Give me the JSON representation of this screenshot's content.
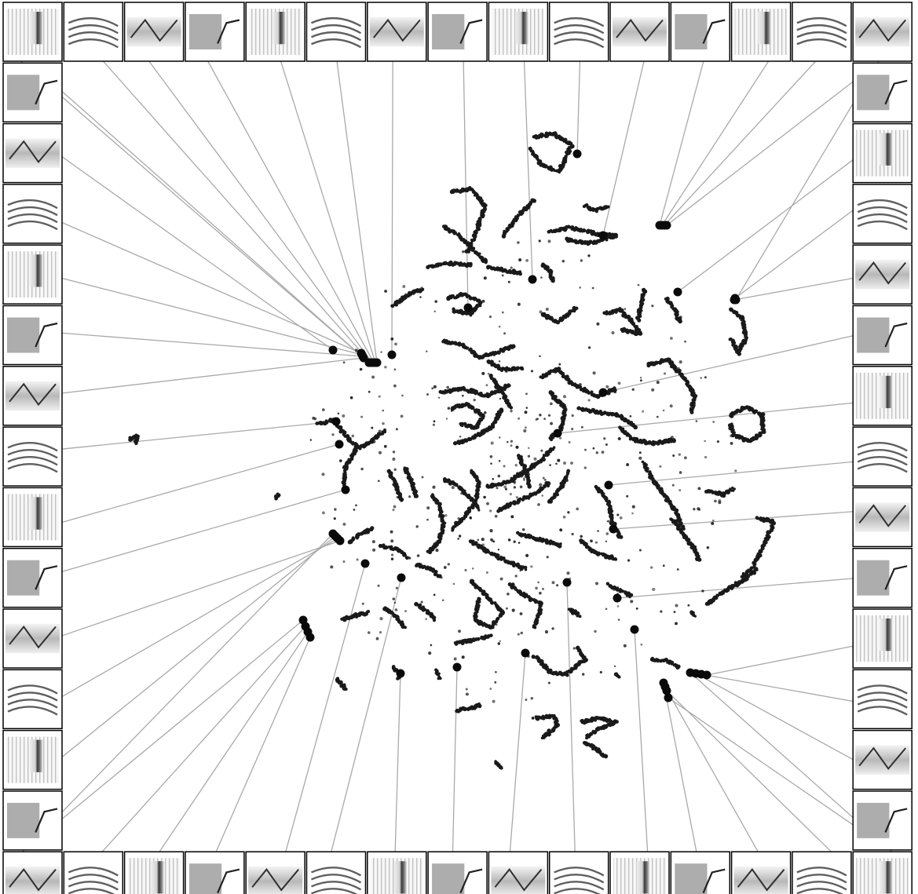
{
  "figure": {
    "kind": "embedding-scatter-with-spectrogram-thumbnails",
    "background": "#ffffff",
    "point_color": "#1a1a1a",
    "leader_color": "#a9a9a9",
    "frame_color": "#000000",
    "thumbnail_count": 56,
    "thumbnail_style": "grayscale spectrogram"
  }
}
